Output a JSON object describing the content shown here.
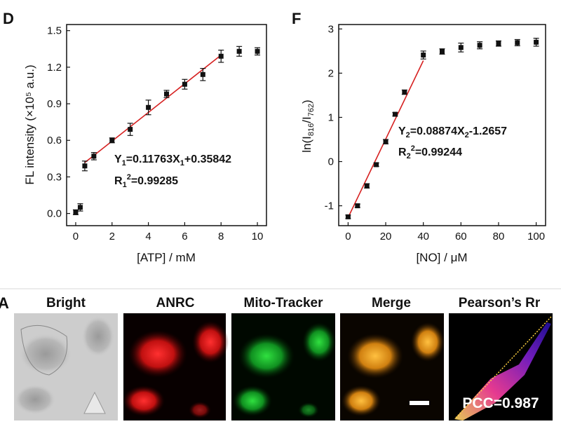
{
  "figure": {
    "separator_color": "#e6e6e6",
    "bottom_row_letter": "A"
  },
  "chart_data": [
    {
      "panel": "D",
      "type": "scatter",
      "xlabel": "[ATP] / mM",
      "ylabel": "FL intensity (×10⁵ a.u.)",
      "xlim": [
        -0.5,
        10.5
      ],
      "ylim": [
        -0.1,
        1.55
      ],
      "xticks": [
        0,
        2,
        4,
        6,
        8,
        10
      ],
      "yticks": [
        0.0,
        0.3,
        0.6,
        0.9,
        1.2,
        1.5
      ],
      "ytick_labels": [
        "0.0",
        "0.3",
        "0.6",
        "0.9",
        "1.2",
        "1.5"
      ],
      "series": [
        {
          "x": [
            0,
            0.25,
            0.5,
            1,
            2,
            3,
            4,
            5,
            6,
            7,
            8,
            9,
            10
          ],
          "y": [
            0.01,
            0.05,
            0.39,
            0.47,
            0.6,
            0.69,
            0.87,
            0.98,
            1.06,
            1.14,
            1.29,
            1.33,
            1.33
          ],
          "err": [
            0.02,
            0.03,
            0.04,
            0.03,
            0.02,
            0.05,
            0.06,
            0.03,
            0.04,
            0.05,
            0.05,
            0.04,
            0.03
          ]
        }
      ],
      "fit": {
        "slope": 0.11763,
        "intercept": 0.35842,
        "x_range": [
          0.5,
          8
        ]
      },
      "equation": {
        "y": "Y",
        "y_sub": "1",
        "mid": "=0.11763X",
        "x_sub": "1",
        "tail": "+0.35842"
      },
      "r2": {
        "r": "R",
        "sub": "1",
        "sup": "2",
        "value": "=0.99285"
      },
      "marker_color": "#111111",
      "fit_color": "#d62020"
    },
    {
      "panel": "F",
      "type": "scatter",
      "xlabel": "[NO] / μM",
      "ylabel": {
        "pre": "ln(I",
        "sub1": "816",
        "mid": "/I",
        "sub2": "762",
        "post": ")"
      },
      "xlim": [
        -5,
        105
      ],
      "ylim": [
        -1.45,
        3.1
      ],
      "xticks": [
        0,
        20,
        40,
        60,
        80,
        100
      ],
      "yticks": [
        -1,
        0,
        1,
        2,
        3
      ],
      "ytick_labels": [
        "-1",
        "0",
        "1",
        "2",
        "3"
      ],
      "series": [
        {
          "x": [
            0,
            5,
            10,
            15,
            20,
            25,
            30,
            40,
            50,
            60,
            70,
            80,
            90,
            100
          ],
          "y": [
            -1.25,
            -1.0,
            -0.55,
            -0.07,
            0.45,
            1.07,
            1.57,
            2.41,
            2.49,
            2.58,
            2.63,
            2.67,
            2.69,
            2.7
          ],
          "err": [
            0.04,
            0.04,
            0.05,
            0.04,
            0.05,
            0.04,
            0.05,
            0.09,
            0.06,
            0.1,
            0.08,
            0.06,
            0.07,
            0.09
          ]
        }
      ],
      "fit": {
        "slope": 0.08874,
        "intercept": -1.2657,
        "x_range": [
          0,
          40
        ]
      },
      "equation": {
        "y": "Y",
        "y_sub": "2",
        "mid": "=0.08874X",
        "x_sub": "2",
        "tail": "-1.2657"
      },
      "r2": {
        "r": "R",
        "sub": "2",
        "sup": "2",
        "value": "=0.99244"
      },
      "marker_color": "#111111",
      "fit_color": "#d62020"
    }
  ],
  "images": [
    {
      "title": "Bright",
      "kind": "bright"
    },
    {
      "title": "ANRC",
      "kind": "red"
    },
    {
      "title": "Mito-Tracker",
      "kind": "green"
    },
    {
      "title": "Merge",
      "kind": "merge"
    },
    {
      "title": "Pearson’s Rr",
      "kind": "pearson"
    }
  ],
  "pcc_label": "PCC=0.987"
}
